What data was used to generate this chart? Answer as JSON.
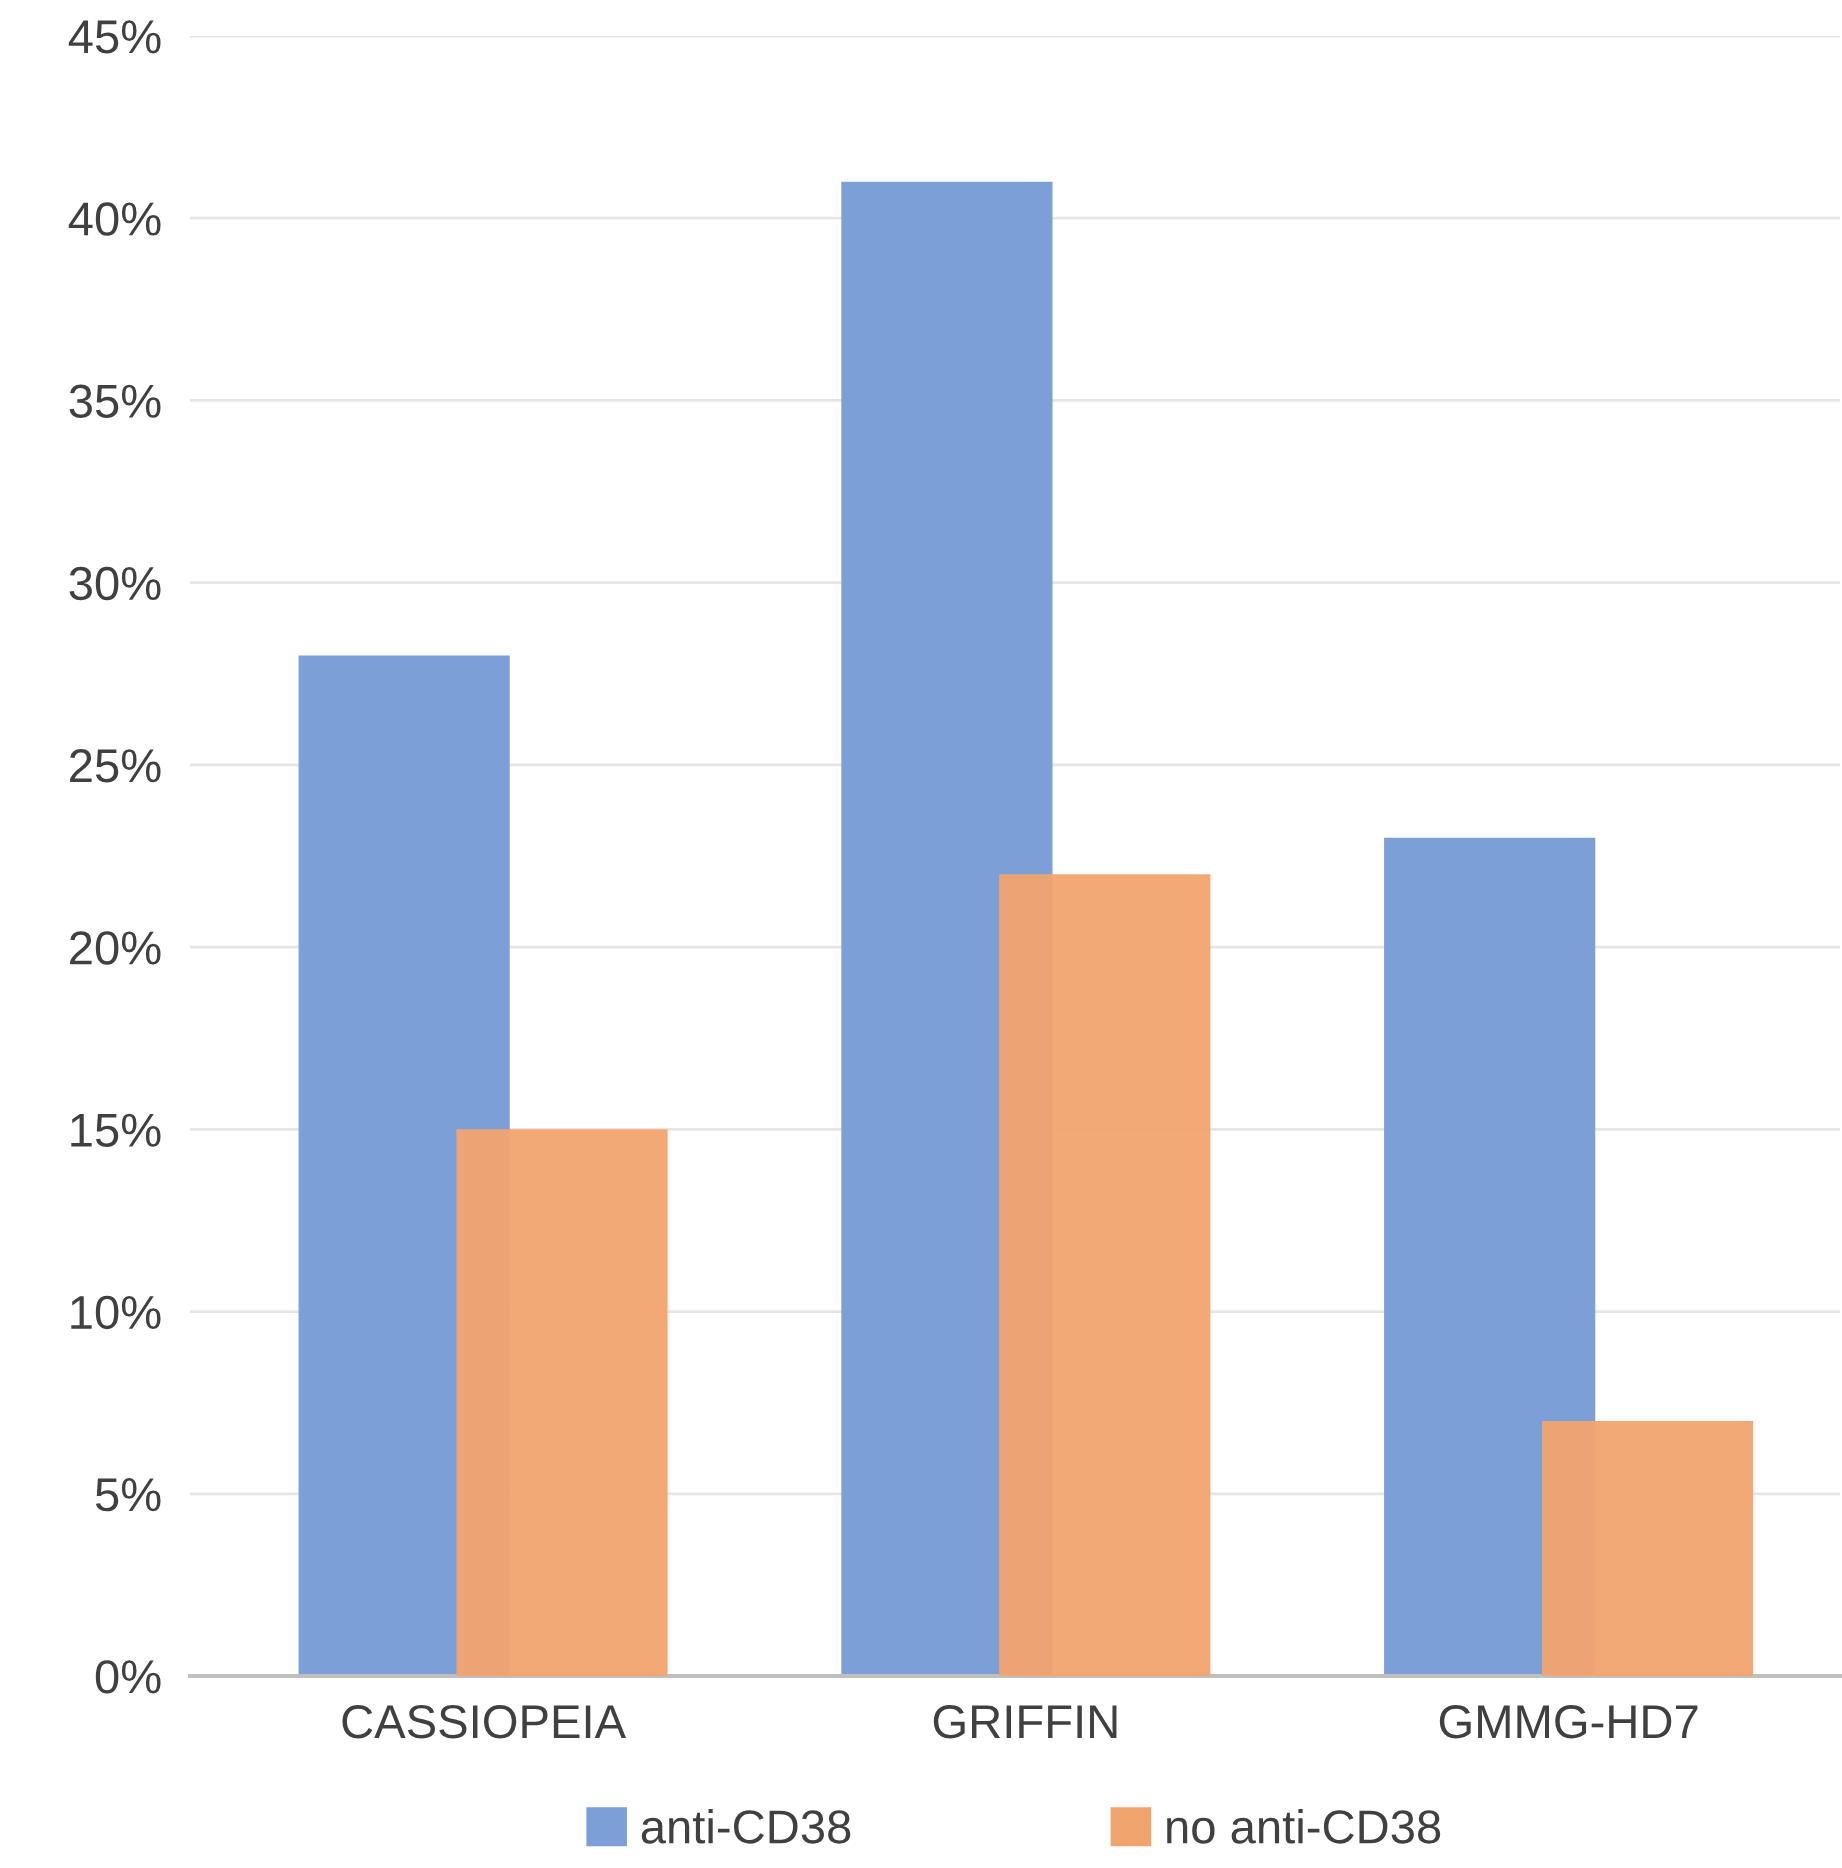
{
  "chart_data": {
    "type": "bar",
    "categories": [
      "CASSIOPEIA",
      "GRIFFIN",
      "GMMG-HD7"
    ],
    "series": [
      {
        "name": "anti-CD38",
        "color": "#7b9fd6",
        "values": [
          28,
          41,
          23
        ]
      },
      {
        "name": "no anti-CD38",
        "color": "#f2a46f",
        "values": [
          15,
          22,
          7
        ]
      }
    ],
    "ylim": [
      0,
      45
    ],
    "yticks": [
      {
        "value": 0,
        "label": "0%"
      },
      {
        "value": 5,
        "label": "5%"
      },
      {
        "value": 10,
        "label": "10%"
      },
      {
        "value": 15,
        "label": "15%"
      },
      {
        "value": 20,
        "label": "20%"
      },
      {
        "value": 25,
        "label": "25%"
      },
      {
        "value": 30,
        "label": "30%"
      },
      {
        "value": 35,
        "label": "35%"
      },
      {
        "value": 40,
        "label": "40%"
      },
      {
        "value": 45,
        "label": "45%"
      }
    ],
    "grid": "y",
    "legend": "bottom"
  }
}
